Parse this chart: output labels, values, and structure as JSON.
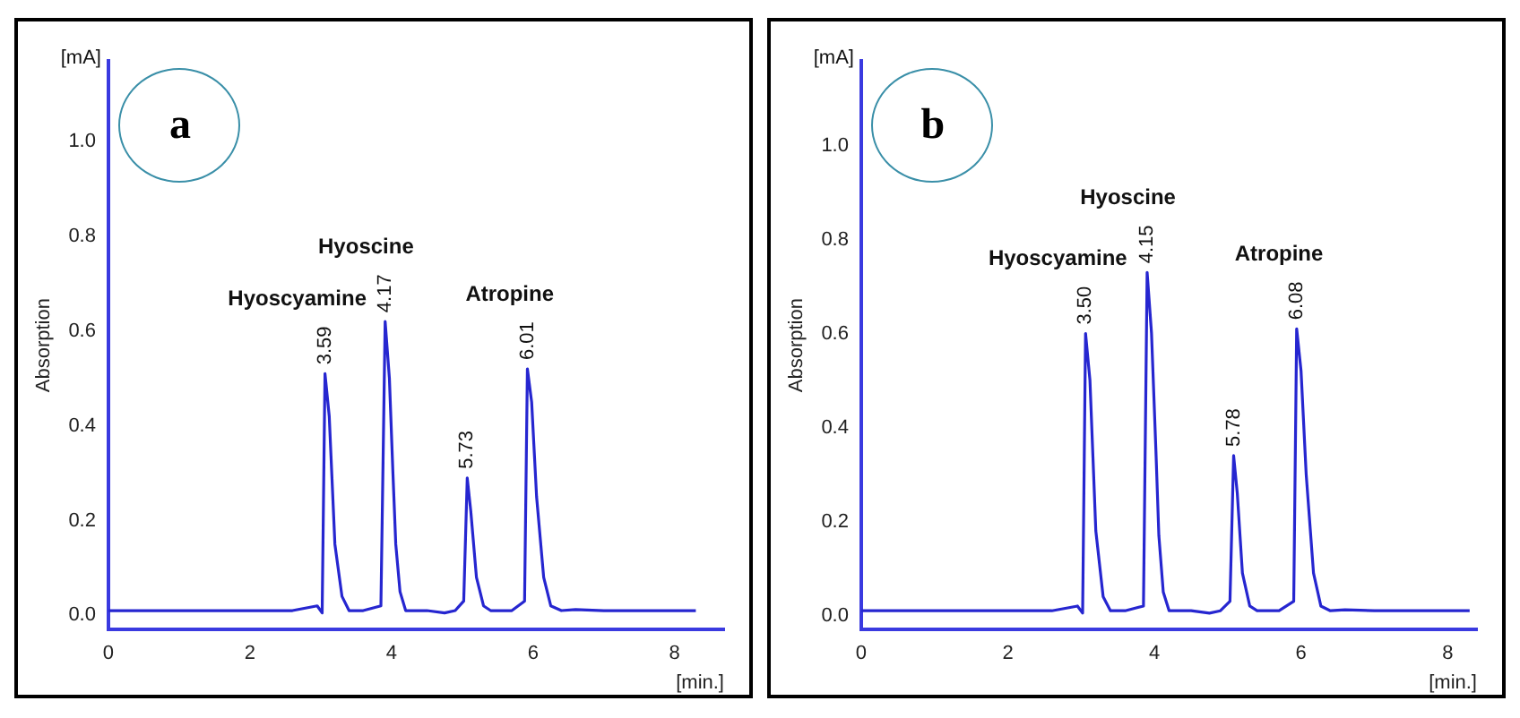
{
  "chart_data": [
    {
      "type": "line",
      "title": "a",
      "xlabel": "[min.]",
      "ylabel": "Absorption",
      "color": "#2626d0",
      "x": [
        0,
        1,
        2,
        2.6,
        2.95,
        3.02,
        3.06,
        3.12,
        3.2,
        3.3,
        3.4,
        3.6,
        3.85,
        3.91,
        3.97,
        4.02,
        4.06,
        4.12,
        4.2,
        4.5,
        4.75,
        4.9,
        5.02,
        5.07,
        5.12,
        5.2,
        5.3,
        5.4,
        5.7,
        5.88,
        5.92,
        5.98,
        6.05,
        6.15,
        6.25,
        6.4,
        6.6,
        7,
        8.3
      ],
      "values": [
        0.01,
        0.01,
        0.01,
        0.01,
        0.02,
        0.005,
        0.51,
        0.42,
        0.15,
        0.04,
        0.01,
        0.01,
        0.02,
        0.62,
        0.5,
        0.3,
        0.15,
        0.05,
        0.01,
        0.01,
        0.005,
        0.01,
        0.03,
        0.29,
        0.22,
        0.08,
        0.02,
        0.01,
        0.01,
        0.03,
        0.52,
        0.45,
        0.25,
        0.08,
        0.02,
        0.01,
        0.012,
        0.01,
        0.01
      ],
      "xlim": [
        0,
        8.7
      ],
      "ylim": [
        -0.03,
        1.17
      ],
      "xticks": [
        0,
        2,
        4,
        6,
        8
      ],
      "yticks": [
        {
          "value": 0,
          "label": "0.0"
        },
        {
          "value": 0.2,
          "label": "0.2"
        },
        {
          "value": 0.4,
          "label": "0.4"
        },
        {
          "value": 0.6,
          "label": "0.6"
        },
        {
          "value": 0.8,
          "label": "0.8"
        },
        {
          "value": 1,
          "label": "1.0"
        }
      ],
      "annotations": [
        "[mA]",
        {
          "text": "3.59",
          "x": 3.06,
          "y": 0.51
        },
        {
          "text": "Hyoscyamine",
          "x": 3.06,
          "y": 0.51
        },
        {
          "text": "4.17",
          "x": 3.91,
          "y": 0.62
        },
        {
          "text": "Hyoscine",
          "x": 3.91,
          "y": 0.62
        },
        {
          "text": "5.73",
          "x": 5.07,
          "y": 0.29
        },
        {
          "text": "6.01",
          "x": 5.92,
          "y": 0.52
        },
        {
          "text": "Atropine",
          "x": 5.92,
          "y": 0.52
        }
      ]
    },
    {
      "type": "line",
      "title": "b",
      "xlabel": "[min.]",
      "ylabel": "Absorption",
      "color": "#2626d0",
      "x": [
        0,
        1,
        2,
        2.6,
        2.95,
        3.02,
        3.06,
        3.12,
        3.2,
        3.3,
        3.4,
        3.6,
        3.85,
        3.9,
        3.96,
        4.02,
        4.06,
        4.12,
        4.2,
        4.5,
        4.75,
        4.9,
        5.03,
        5.08,
        5.13,
        5.2,
        5.3,
        5.4,
        5.7,
        5.9,
        5.94,
        6.0,
        6.07,
        6.17,
        6.27,
        6.4,
        6.6,
        7,
        8.3
      ],
      "values": [
        0.01,
        0.01,
        0.01,
        0.01,
        0.02,
        0.005,
        0.6,
        0.5,
        0.18,
        0.04,
        0.01,
        0.01,
        0.02,
        0.73,
        0.6,
        0.35,
        0.17,
        0.05,
        0.01,
        0.01,
        0.005,
        0.01,
        0.03,
        0.34,
        0.26,
        0.09,
        0.02,
        0.01,
        0.01,
        0.03,
        0.61,
        0.52,
        0.3,
        0.09,
        0.02,
        0.01,
        0.012,
        0.01,
        0.01
      ],
      "xlim": [
        0,
        8.4
      ],
      "ylim": [
        -0.03,
        1.18
      ],
      "xticks": [
        0,
        2,
        4,
        6,
        8
      ],
      "yticks": [
        {
          "value": 0,
          "label": "0.0"
        },
        {
          "value": 0.2,
          "label": "0.2"
        },
        {
          "value": 0.4,
          "label": "0.4"
        },
        {
          "value": 0.6,
          "label": "0.6"
        },
        {
          "value": 0.8,
          "label": "0.8"
        },
        {
          "value": 1,
          "label": "1.0"
        }
      ],
      "annotations": [
        "[mA]",
        {
          "text": "3.50",
          "x": 3.06,
          "y": 0.6
        },
        {
          "text": "Hyoscyamine",
          "x": 3.06,
          "y": 0.6
        },
        {
          "text": "4.15",
          "x": 3.9,
          "y": 0.73
        },
        {
          "text": "Hyoscine",
          "x": 3.9,
          "y": 0.73
        },
        {
          "text": "5.78",
          "x": 5.08,
          "y": 0.34
        },
        {
          "text": "6.08",
          "x": 5.94,
          "y": 0.61
        },
        {
          "text": "Atropine",
          "x": 5.94,
          "y": 0.61
        }
      ]
    }
  ]
}
